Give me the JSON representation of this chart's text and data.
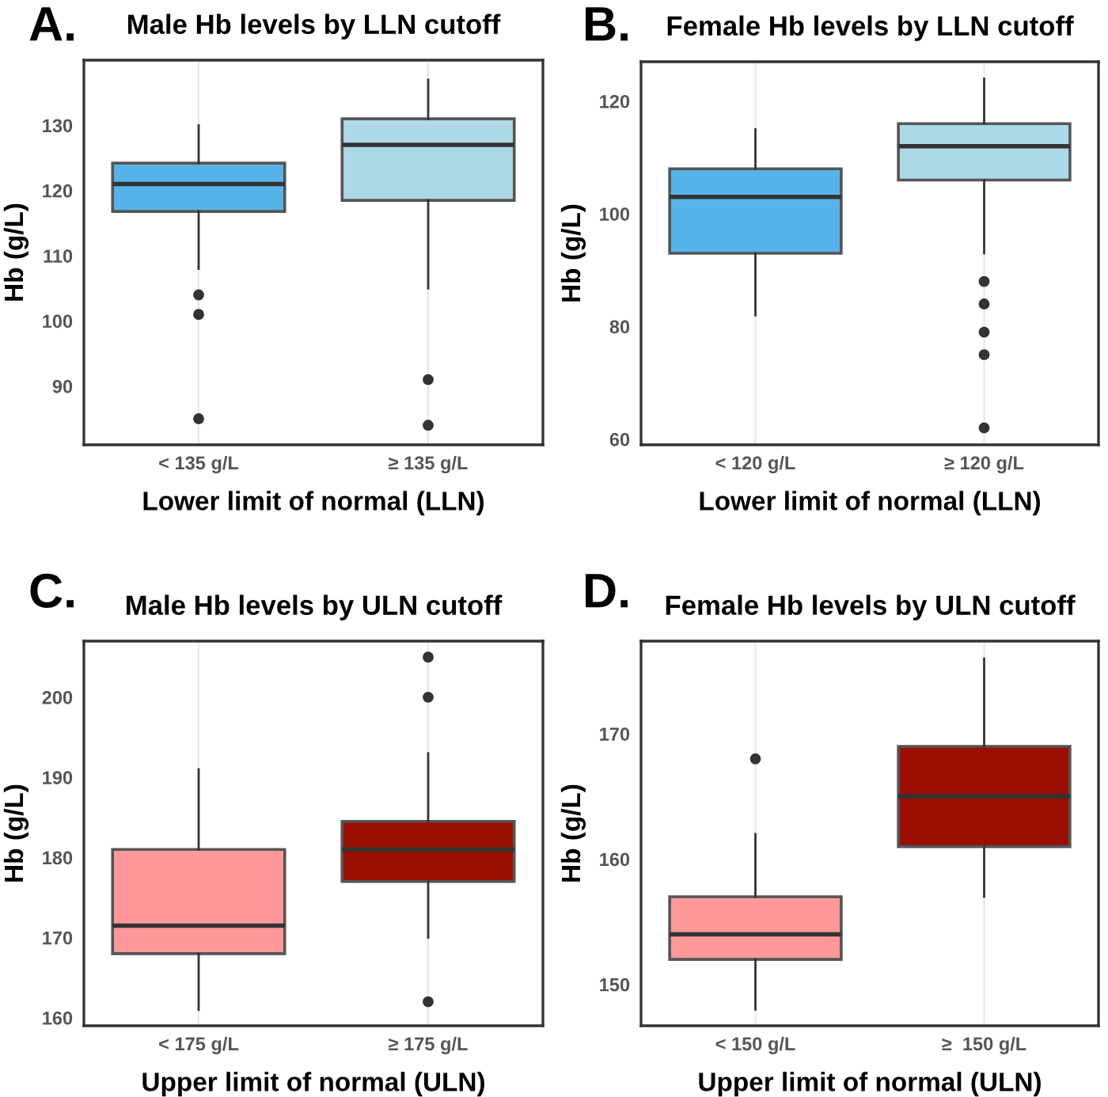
{
  "chart_data": [
    {
      "type": "box",
      "title": "Male Hb levels by LLN cutoff",
      "annotations": [
        "A."
      ],
      "xlabel": "Lower limit of normal (LLN)",
      "ylabel": "Hb (g/L)",
      "categories": [
        "< 135 g/L",
        "≥ 135 g/L"
      ],
      "colors": [
        "#56b4e9",
        "#add8e6"
      ],
      "ylim": [
        81,
        140
      ],
      "yticks": [
        90,
        100,
        110,
        120,
        130
      ],
      "grid": "x",
      "boxes": [
        {
          "low": 108,
          "q1": 116.8,
          "median": 121,
          "q3": 124.2,
          "high": 130,
          "outliers": [
            104,
            101,
            85
          ]
        },
        {
          "low": 105,
          "q1": 118.5,
          "median": 127,
          "q3": 131,
          "high": 137,
          "outliers": [
            91,
            84
          ]
        }
      ]
    },
    {
      "type": "box",
      "title": "Female Hb levels by LLN cutoff",
      "annotations": [
        "B."
      ],
      "xlabel": "Lower limit of normal (LLN)",
      "ylabel": "Hb (g/L)",
      "categories": [
        "< 120 g/L",
        "≥ 120 g/L"
      ],
      "colors": [
        "#56b4e9",
        "#add8e6"
      ],
      "ylim": [
        59,
        127
      ],
      "yticks": [
        60,
        80,
        100,
        120
      ],
      "grid": "x",
      "boxes": [
        {
          "low": 82,
          "q1": 93,
          "median": 103,
          "q3": 108,
          "high": 115
        },
        {
          "low": 93,
          "q1": 106,
          "median": 112,
          "q3": 116,
          "high": 124,
          "outliers": [
            88,
            84,
            79,
            75,
            62
          ]
        }
      ]
    },
    {
      "type": "box",
      "title": "Male Hb levels by ULN cutoff",
      "annotations": [
        "C."
      ],
      "xlabel": "Upper limit of normal (ULN)",
      "ylabel": "Hb (g/L)",
      "categories": [
        "< 175 g/L",
        "≥ 175 g/L"
      ],
      "colors": [
        "#ff9999",
        "#990f02"
      ],
      "ylim": [
        159,
        207
      ],
      "yticks": [
        160,
        170,
        180,
        190,
        200
      ],
      "grid": "x",
      "boxes": [
        {
          "low": 161,
          "q1": 168,
          "median": 171.5,
          "q3": 181,
          "high": 191
        },
        {
          "low": 170,
          "q1": 177,
          "median": 181,
          "q3": 184.5,
          "high": 193,
          "outliers": [
            205,
            200,
            162
          ]
        }
      ]
    },
    {
      "type": "box",
      "title": "Female Hb levels by ULN cutoff",
      "annotations": [
        "D."
      ],
      "xlabel": "Upper limit of normal (ULN)",
      "ylabel": "Hb (g/L)",
      "categories": [
        "< 150 g/L",
        "≥  150 g/L"
      ],
      "colors": [
        "#ff9999",
        "#990f02"
      ],
      "ylim": [
        146.7,
        177.4
      ],
      "yticks": [
        150,
        160,
        170
      ],
      "grid": "x",
      "boxes": [
        {
          "low": 148,
          "q1": 152,
          "median": 154,
          "q3": 157,
          "high": 162,
          "outliers": [
            168
          ]
        },
        {
          "low": 157,
          "q1": 161,
          "median": 165,
          "q3": 169,
          "high": 176
        }
      ]
    }
  ]
}
